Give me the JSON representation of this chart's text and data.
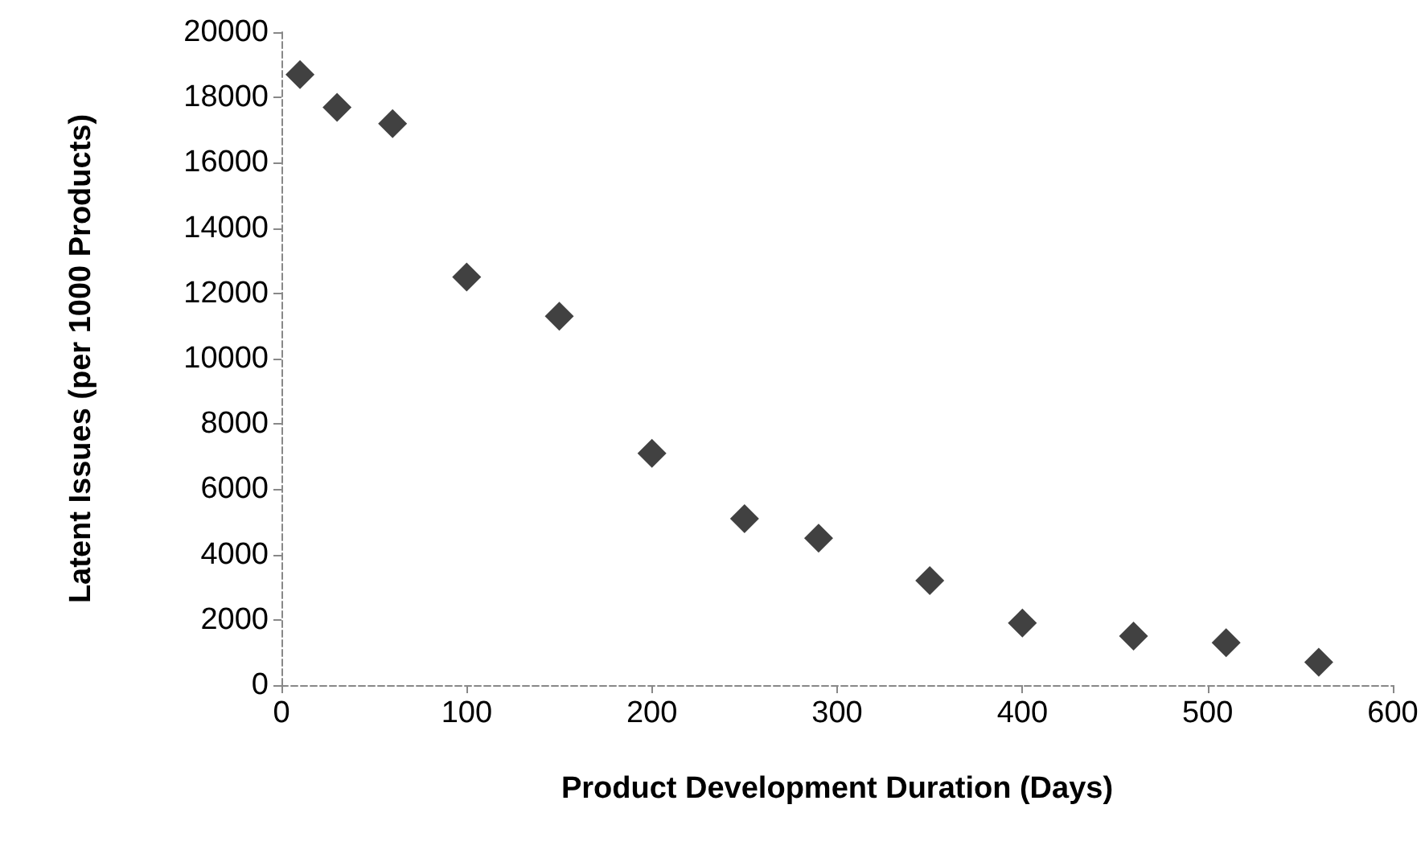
{
  "chart_data": {
    "type": "scatter",
    "xlabel": "Product Development Duration (Days)",
    "ylabel": "Latent Issues (per 1000 Products)",
    "x": [
      10,
      30,
      60,
      100,
      150,
      200,
      250,
      290,
      350,
      400,
      460,
      510,
      560
    ],
    "values": [
      18700,
      17700,
      17200,
      12500,
      11300,
      7100,
      5100,
      4500,
      3200,
      1900,
      1500,
      1300,
      700
    ],
    "color": "#111111",
    "marker": "diamond",
    "xlim": [
      0,
      600
    ],
    "xticks": [
      0,
      100,
      200,
      300,
      400,
      500,
      600
    ],
    "ylim": [
      0,
      20000
    ],
    "yticks": [
      0,
      2000,
      4000,
      6000,
      8000,
      10000,
      12000,
      14000,
      16000,
      18000,
      20000
    ],
    "grid": false
  }
}
